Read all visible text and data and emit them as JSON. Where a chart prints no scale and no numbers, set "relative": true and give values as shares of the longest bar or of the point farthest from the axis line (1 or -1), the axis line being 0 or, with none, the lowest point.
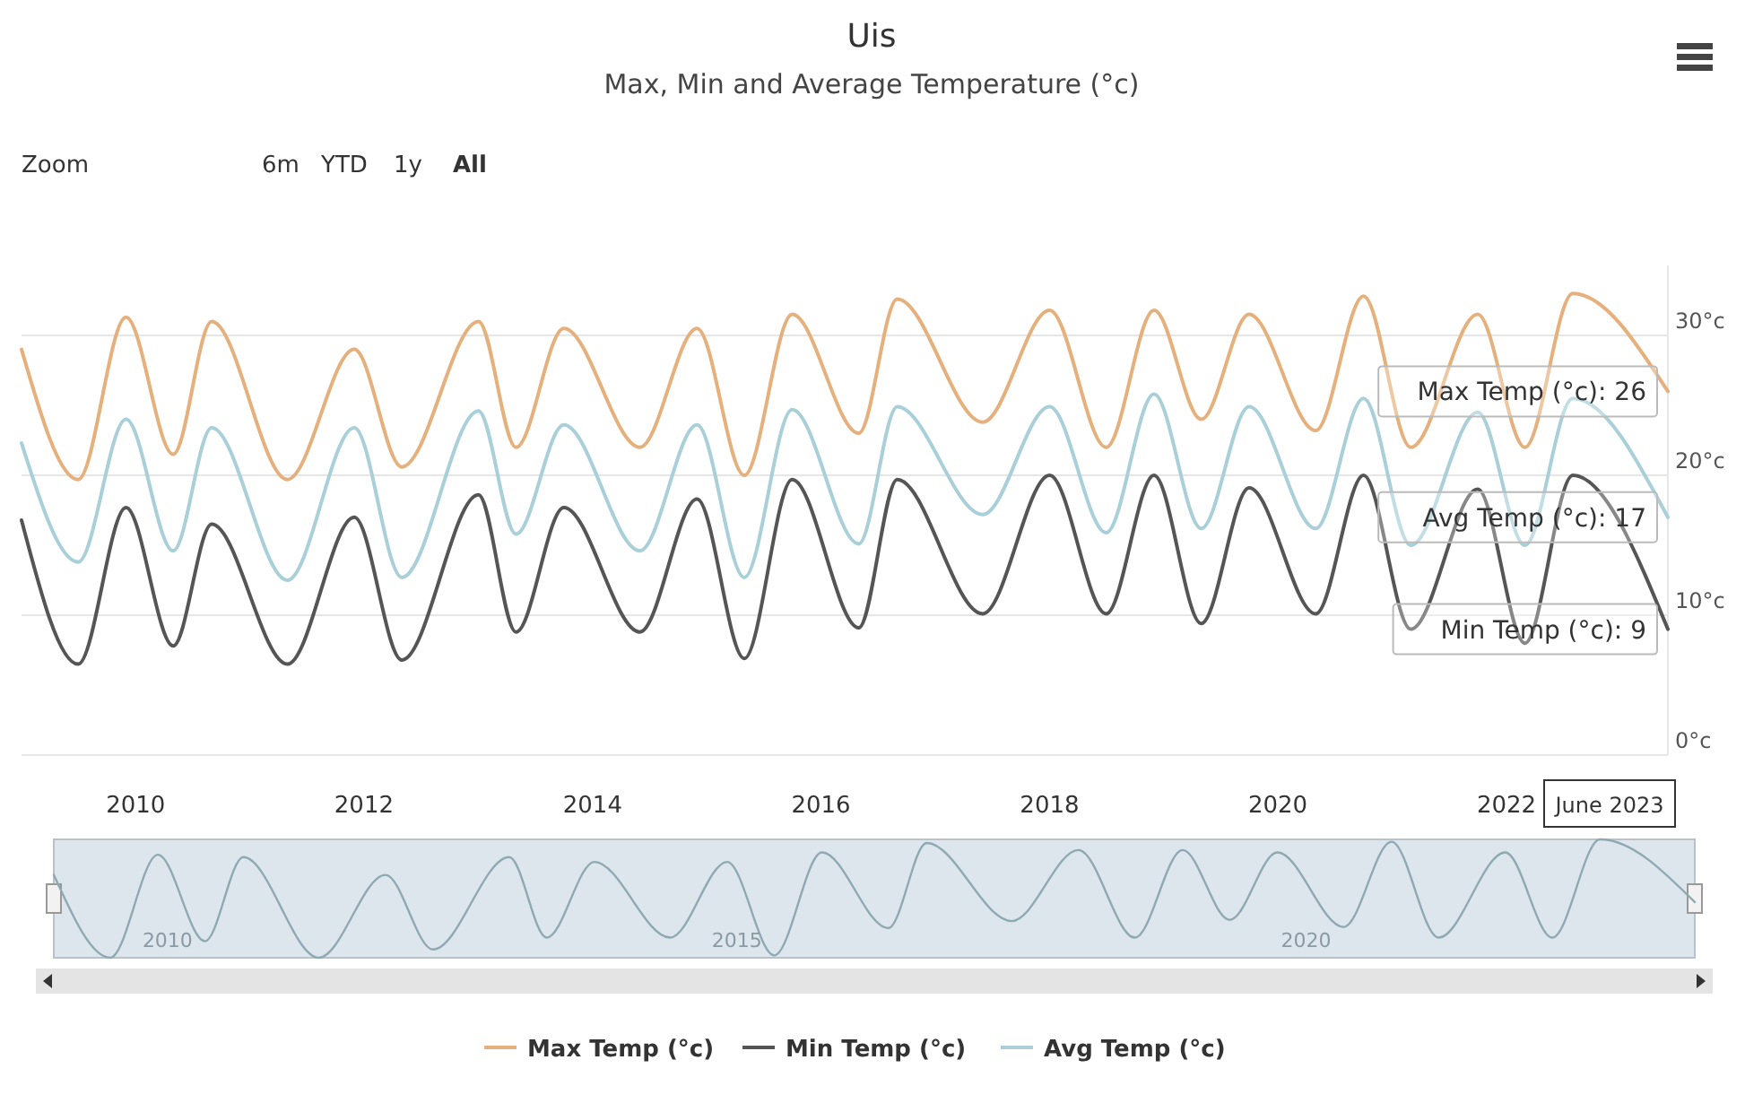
{
  "chart_data": [
    {
      "type": "line",
      "title": "Uis",
      "subtitle": "Max, Min and Average Temperature (°c)",
      "x": [
        "2009-01",
        "2009-07",
        "2009-12",
        "2010-05",
        "2010-09",
        "2011-05",
        "2011-12",
        "2012-05",
        "2013-01",
        "2013-05",
        "2013-10",
        "2014-06",
        "2014-12",
        "2015-05",
        "2015-10",
        "2016-05",
        "2016-09",
        "2017-06",
        "2018-01",
        "2018-07",
        "2018-12",
        "2019-05",
        "2019-10",
        "2020-05",
        "2020-10",
        "2021-03",
        "2021-10",
        "2022-03",
        "2022-08",
        "2023-06"
      ],
      "series": [
        {
          "name": "Max Temp (°c)",
          "color": "#e6b07c",
          "values": [
            29,
            19.7,
            31.3,
            21.5,
            31,
            19.7,
            29,
            20.6,
            31,
            22,
            30.5,
            22,
            30.5,
            20,
            31.5,
            23,
            32.6,
            23.8,
            31.8,
            22,
            31.8,
            24,
            31.5,
            23.2,
            32.8,
            22,
            31.5,
            22,
            33,
            26
          ]
        },
        {
          "name": "Min Temp (°c)",
          "color": "#555555",
          "values": [
            16.8,
            6.5,
            17.7,
            7.8,
            16.5,
            6.5,
            17,
            6.8,
            18.6,
            8.8,
            17.7,
            8.8,
            18.3,
            6.9,
            19.7,
            9.1,
            19.7,
            10.1,
            20,
            10.1,
            20,
            9.4,
            19.1,
            10.1,
            20,
            9,
            19,
            8,
            20,
            9
          ]
        },
        {
          "name": "Avg Temp (°c)",
          "color": "#a9cfd8",
          "values": [
            22.3,
            13.8,
            24,
            14.6,
            23.4,
            12.5,
            23.4,
            12.7,
            24.6,
            15.8,
            23.6,
            14.6,
            23.6,
            12.7,
            24.7,
            15.1,
            24.9,
            17.2,
            24.9,
            15.9,
            25.8,
            16.2,
            24.9,
            16.2,
            25.5,
            15,
            24.5,
            15,
            25.5,
            17
          ]
        }
      ],
      "xlim": [
        "2009-01",
        "2023-06"
      ],
      "xticks": [
        "2010",
        "2012",
        "2014",
        "2016",
        "2018",
        "2020",
        "2022"
      ],
      "ylim": [
        0,
        35
      ],
      "yticks": [
        {
          "value": 0,
          "label": "0°c"
        },
        {
          "value": 10,
          "label": "10°c"
        },
        {
          "value": 20,
          "label": "20°c"
        },
        {
          "value": 30,
          "label": "30°c"
        }
      ],
      "grid": "y",
      "legend": "bottom",
      "annotations": [
        "Zoom",
        "6m",
        "YTD",
        "1y",
        "All",
        {
          "text": "Max Temp (°c): 26",
          "x": "2023-06",
          "y": 26
        },
        {
          "text": "Avg Temp (°c): 17",
          "x": "2023-06",
          "y": 17
        },
        {
          "text": "Min Temp (°c): 9",
          "x": "2023-06",
          "y": 9
        },
        "June 2023"
      ]
    },
    {
      "type": "line",
      "relative": true,
      "tick_labels": "x",
      "legend": false,
      "x": [
        "2009-01",
        "2009-07",
        "2009-12",
        "2010-05",
        "2010-09",
        "2011-05",
        "2011-12",
        "2012-05",
        "2013-01",
        "2013-05",
        "2013-10",
        "2014-06",
        "2014-12",
        "2015-05",
        "2015-10",
        "2016-05",
        "2016-09",
        "2017-06",
        "2018-01",
        "2018-07",
        "2018-12",
        "2019-05",
        "2019-10",
        "2020-05",
        "2020-10",
        "2021-03",
        "2021-10",
        "2022-03",
        "2022-08",
        "2023-06"
      ],
      "series": [
        {
          "color": "#8fa9b3",
          "values": [
            0.7,
            0,
            0.87,
            0.14,
            0.85,
            0,
            0.7,
            0.07,
            0.85,
            0.17,
            0.81,
            0.17,
            0.81,
            0.02,
            0.89,
            0.25,
            0.97,
            0.31,
            0.91,
            0.17,
            0.91,
            0.32,
            0.89,
            0.26,
            0.98,
            0.17,
            0.89,
            0.17,
            1,
            0.47
          ]
        }
      ],
      "xlim": [
        "2009-01",
        "2023-06"
      ],
      "xticks": [
        "2010",
        "2015",
        "2020"
      ]
    }
  ]
}
